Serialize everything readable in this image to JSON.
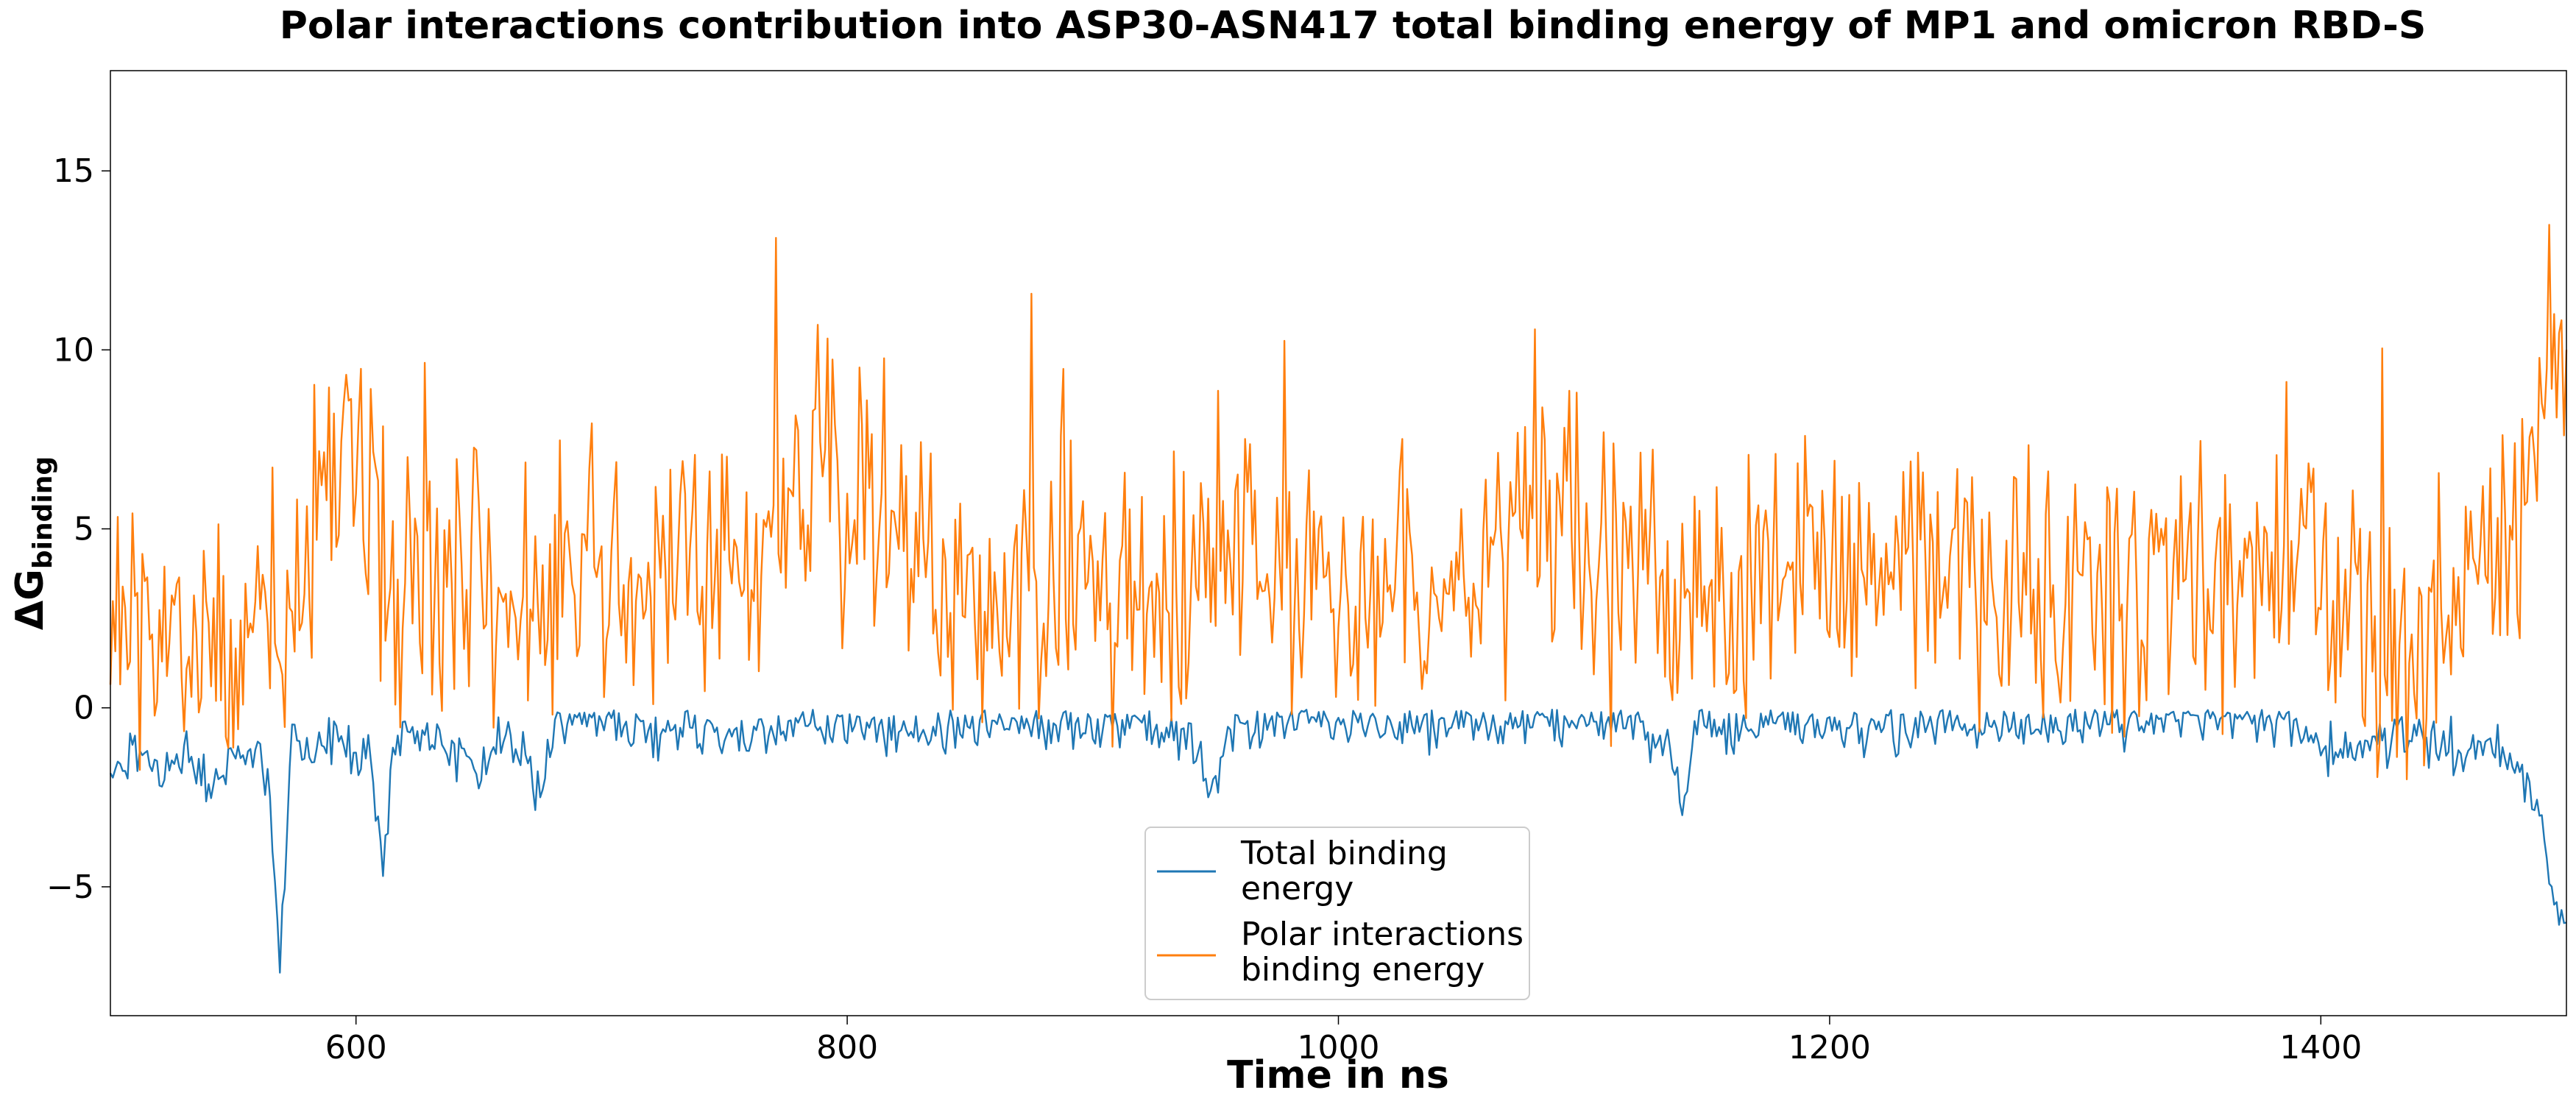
{
  "chart_data": {
    "type": "line",
    "title": "Polar interactions contribution into ASP30-ASN417 total binding energy of MP1 and omicron RBD-S",
    "xlabel": "Time in ns",
    "ylabel_main": "ΔG",
    "ylabel_sub": "binding",
    "xlim": [
      500,
      1500
    ],
    "ylim": [
      -8.6,
      17.8
    ],
    "xticks": [
      600,
      800,
      1000,
      1200,
      1400
    ],
    "xtick_labels": [
      "600",
      "800",
      "1000",
      "1200",
      "1400"
    ],
    "yticks": [
      -5,
      0,
      5,
      10,
      15
    ],
    "ytick_labels": [
      "−5",
      "0",
      "5",
      "10",
      "15"
    ],
    "grid": false,
    "legend_position": "bottom-center",
    "series": [
      {
        "name": "Total binding energy",
        "legend_lines": [
          "Total binding",
          "energy"
        ],
        "color": "#1f77b4",
        "anchors": [
          [
            500,
            -2.0
          ],
          [
            510,
            -1.3
          ],
          [
            520,
            -1.8
          ],
          [
            530,
            -1.0
          ],
          [
            540,
            -2.2
          ],
          [
            550,
            -1.5
          ],
          [
            560,
            -1.2
          ],
          [
            565,
            -2.5
          ],
          [
            569,
            -7.4
          ],
          [
            574,
            -1.0
          ],
          [
            580,
            -1.5
          ],
          [
            590,
            -0.7
          ],
          [
            600,
            -1.2
          ],
          [
            605,
            -0.9
          ],
          [
            611,
            -4.7
          ],
          [
            616,
            -0.6
          ],
          [
            630,
            -0.8
          ],
          [
            645,
            -1.4
          ],
          [
            650,
            -1.8
          ],
          [
            660,
            -0.8
          ],
          [
            670,
            -1.6
          ],
          [
            675,
            -2.5
          ],
          [
            682,
            -0.3
          ],
          [
            700,
            -0.4
          ],
          [
            720,
            -0.6
          ],
          [
            740,
            -0.5
          ],
          [
            760,
            -0.8
          ],
          [
            780,
            -0.4
          ],
          [
            800,
            -0.5
          ],
          [
            820,
            -0.6
          ],
          [
            840,
            -0.8
          ],
          [
            860,
            -0.4
          ],
          [
            880,
            -0.5
          ],
          [
            900,
            -0.4
          ],
          [
            920,
            -0.5
          ],
          [
            940,
            -0.7
          ],
          [
            947,
            -2.5
          ],
          [
            955,
            -0.5
          ],
          [
            980,
            -0.4
          ],
          [
            1000,
            -0.4
          ],
          [
            1020,
            -0.5
          ],
          [
            1050,
            -0.4
          ],
          [
            1080,
            -0.5
          ],
          [
            1100,
            -0.4
          ],
          [
            1120,
            -0.5
          ],
          [
            1135,
            -1.0
          ],
          [
            1140,
            -3.0
          ],
          [
            1145,
            -0.5
          ],
          [
            1160,
            -0.6
          ],
          [
            1180,
            -0.4
          ],
          [
            1200,
            -0.4
          ],
          [
            1220,
            -0.5
          ],
          [
            1250,
            -0.4
          ],
          [
            1280,
            -0.5
          ],
          [
            1300,
            -0.4
          ],
          [
            1320,
            -0.4
          ],
          [
            1350,
            -0.3
          ],
          [
            1380,
            -0.3
          ],
          [
            1390,
            -0.5
          ],
          [
            1400,
            -1.2
          ],
          [
            1410,
            -1.0
          ],
          [
            1420,
            -1.0
          ],
          [
            1440,
            -0.8
          ],
          [
            1450,
            -1.0
          ],
          [
            1460,
            -1.2
          ],
          [
            1470,
            -1.0
          ],
          [
            1480,
            -1.5
          ],
          [
            1485,
            -2.2
          ],
          [
            1490,
            -3.0
          ],
          [
            1495,
            -5.5
          ],
          [
            1500,
            -6.0
          ]
        ],
        "noise": 0.45
      },
      {
        "name": "Polar interactions binding energy",
        "legend_lines": [
          "Polar interactions",
          "binding energy"
        ],
        "color": "#ff7f0e",
        "anchors": [
          [
            500,
            2.0
          ],
          [
            510,
            2.5
          ],
          [
            520,
            1.5
          ],
          [
            530,
            2.0
          ],
          [
            540,
            1.8
          ],
          [
            550,
            1.5
          ],
          [
            560,
            2.0
          ],
          [
            570,
            2.5
          ],
          [
            580,
            5.0
          ],
          [
            590,
            6.0
          ],
          [
            595,
            8.5
          ],
          [
            605,
            5.5
          ],
          [
            615,
            3.5
          ],
          [
            630,
            4.5
          ],
          [
            650,
            4.5
          ],
          [
            670,
            3.5
          ],
          [
            680,
            3.0
          ],
          [
            690,
            3.5
          ],
          [
            700,
            3.5
          ],
          [
            720,
            3.5
          ],
          [
            740,
            4.0
          ],
          [
            760,
            4.2
          ],
          [
            780,
            6.0
          ],
          [
            790,
            7.5
          ],
          [
            800,
            6.0
          ],
          [
            810,
            6.0
          ],
          [
            820,
            4.5
          ],
          [
            840,
            3.5
          ],
          [
            860,
            3.2
          ],
          [
            880,
            3.5
          ],
          [
            900,
            3.5
          ],
          [
            920,
            3.2
          ],
          [
            940,
            3.5
          ],
          [
            950,
            5.5
          ],
          [
            960,
            5.0
          ],
          [
            980,
            3.5
          ],
          [
            1000,
            3.2
          ],
          [
            1020,
            3.5
          ],
          [
            1040,
            4.0
          ],
          [
            1060,
            4.2
          ],
          [
            1080,
            5.5
          ],
          [
            1090,
            5.5
          ],
          [
            1100,
            4.5
          ],
          [
            1120,
            4.0
          ],
          [
            1135,
            2.5
          ],
          [
            1150,
            3.5
          ],
          [
            1170,
            3.5
          ],
          [
            1200,
            3.8
          ],
          [
            1220,
            3.5
          ],
          [
            1250,
            3.8
          ],
          [
            1280,
            3.5
          ],
          [
            1300,
            3.2
          ],
          [
            1320,
            3.5
          ],
          [
            1350,
            3.5
          ],
          [
            1370,
            3.8
          ],
          [
            1385,
            4.0
          ],
          [
            1400,
            4.5
          ],
          [
            1410,
            3.0
          ],
          [
            1420,
            2.0
          ],
          [
            1440,
            2.0
          ],
          [
            1460,
            3.0
          ],
          [
            1470,
            4.0
          ],
          [
            1480,
            5.0
          ],
          [
            1490,
            8.5
          ],
          [
            1495,
            11.0
          ],
          [
            1500,
            10.0
          ]
        ],
        "noise": 1.8
      }
    ]
  }
}
